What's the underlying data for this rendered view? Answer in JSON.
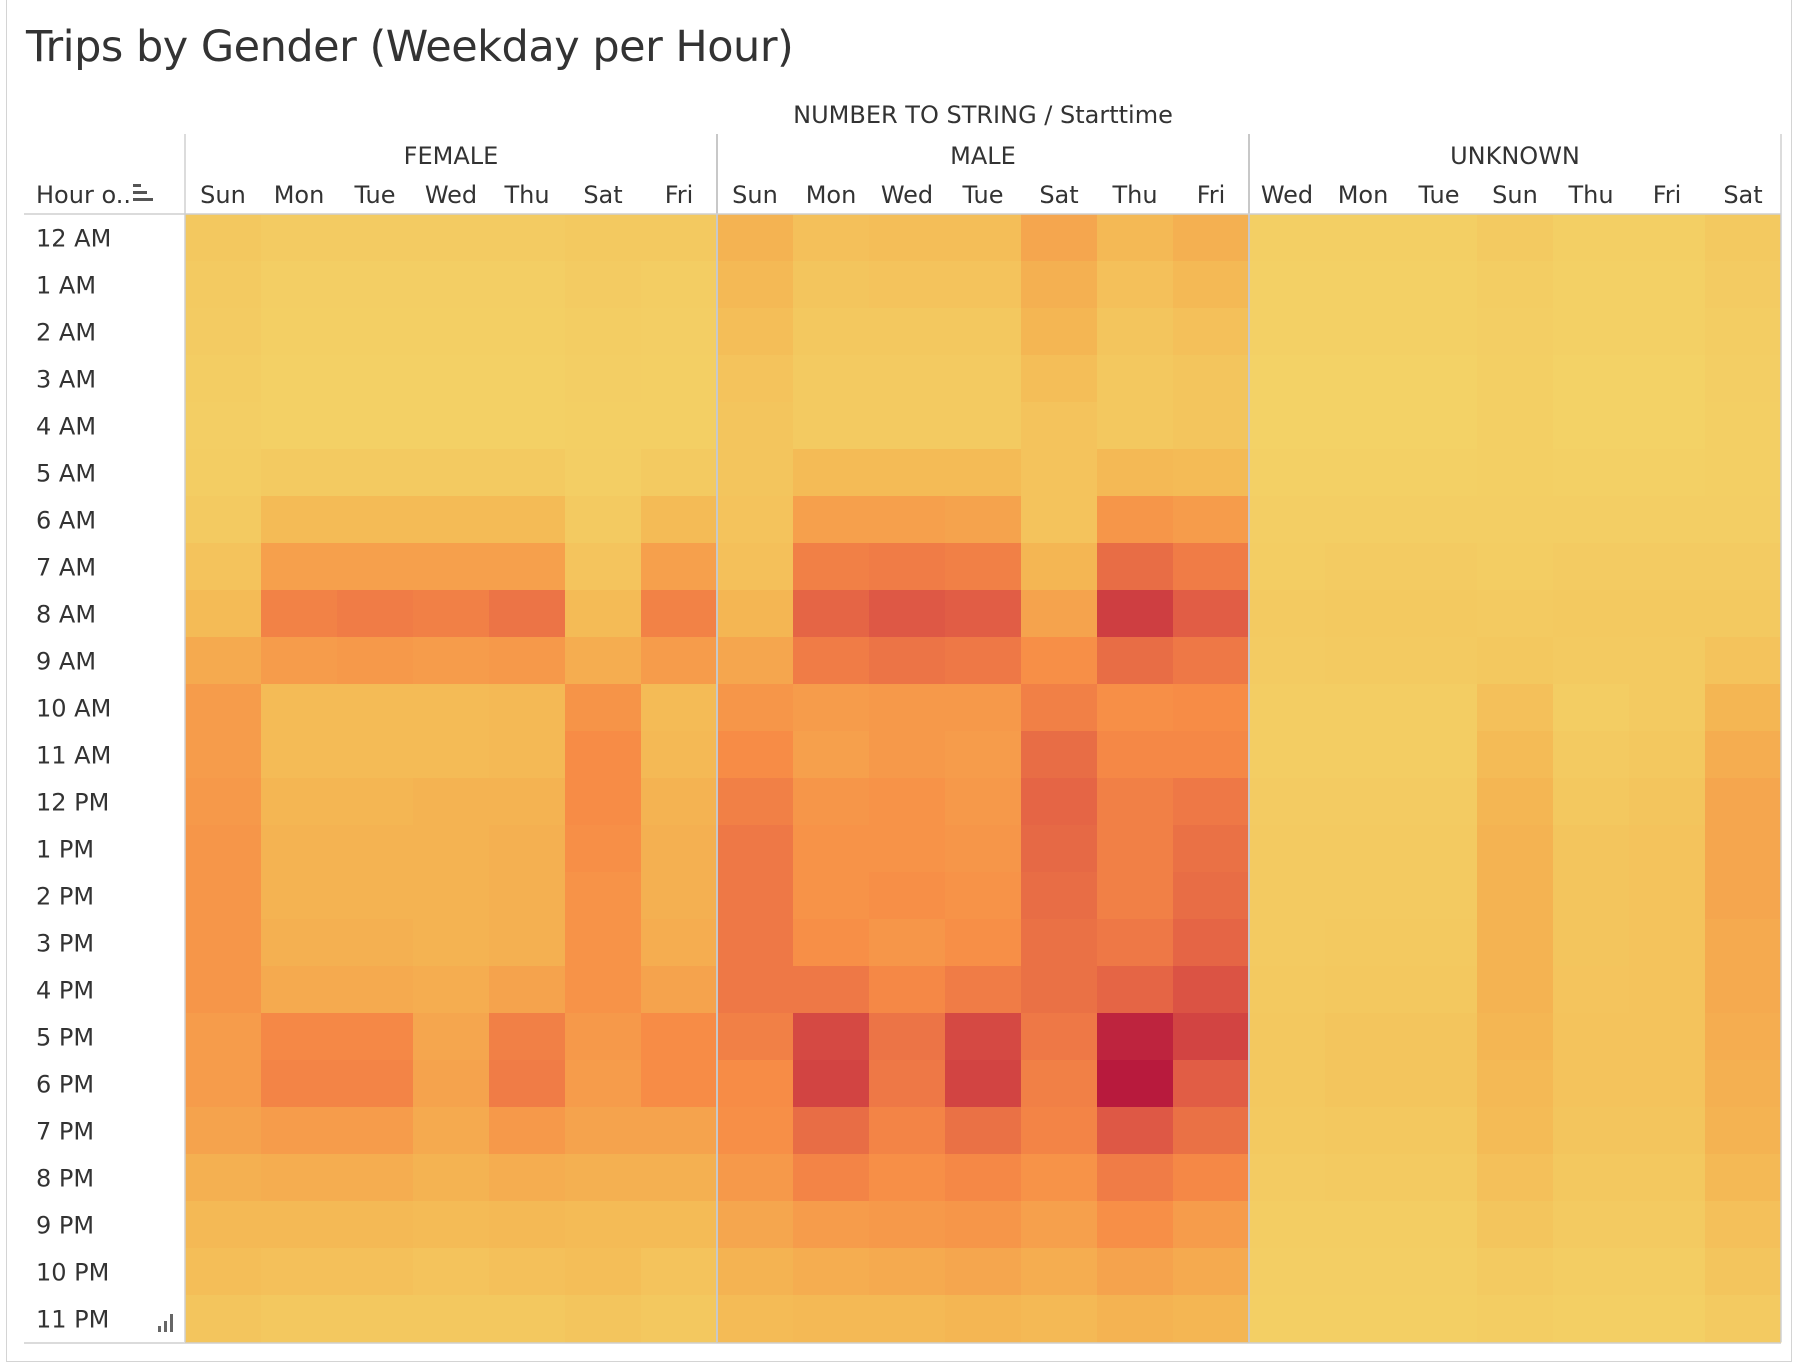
{
  "chart_data": {
    "type": "heatmap",
    "title": "Trips by Gender (Weekday per Hour)",
    "column_field_header": "NUMBER TO STRING / Starttime",
    "row_field_header": "Hour o..",
    "rows": [
      "12 AM",
      "1 AM",
      "2 AM",
      "3 AM",
      "4 AM",
      "5 AM",
      "6 AM",
      "7 AM",
      "8 AM",
      "9 AM",
      "10 AM",
      "11 AM",
      "12 PM",
      "1 PM",
      "2 PM",
      "3 PM",
      "4 PM",
      "5 PM",
      "6 PM",
      "7 PM",
      "8 PM",
      "9 PM",
      "10 PM",
      "11 PM"
    ],
    "color_scale": {
      "min": 0,
      "max": 100,
      "colors": [
        "#f3d468",
        "#f4b552",
        "#f78c46",
        "#e05b45",
        "#b81a3d"
      ]
    },
    "groups": [
      {
        "name": "FEMALE",
        "columns": [
          "Sun",
          "Mon",
          "Tue",
          "Wed",
          "Thu",
          "Sat",
          "Fri"
        ],
        "values": [
          [
            10,
            7,
            7,
            7,
            7,
            9,
            9
          ],
          [
            8,
            5,
            5,
            5,
            5,
            7,
            6
          ],
          [
            7,
            4,
            4,
            4,
            4,
            6,
            5
          ],
          [
            6,
            3,
            3,
            3,
            3,
            5,
            4
          ],
          [
            5,
            3,
            3,
            3,
            3,
            4,
            4
          ],
          [
            6,
            8,
            8,
            8,
            8,
            5,
            8
          ],
          [
            8,
            20,
            20,
            20,
            20,
            8,
            20
          ],
          [
            14,
            38,
            38,
            38,
            38,
            13,
            38
          ],
          [
            20,
            55,
            58,
            56,
            62,
            20,
            55
          ],
          [
            32,
            40,
            42,
            40,
            42,
            30,
            40
          ],
          [
            40,
            20,
            20,
            20,
            22,
            45,
            20
          ],
          [
            40,
            20,
            20,
            20,
            22,
            50,
            22
          ],
          [
            42,
            24,
            24,
            26,
            26,
            50,
            26
          ],
          [
            44,
            26,
            26,
            26,
            28,
            48,
            28
          ],
          [
            44,
            26,
            26,
            26,
            28,
            46,
            28
          ],
          [
            44,
            28,
            28,
            26,
            28,
            46,
            30
          ],
          [
            44,
            32,
            32,
            30,
            36,
            46,
            36
          ],
          [
            40,
            52,
            52,
            34,
            56,
            42,
            50
          ],
          [
            40,
            54,
            54,
            36,
            58,
            40,
            50
          ],
          [
            36,
            40,
            40,
            32,
            42,
            36,
            36
          ],
          [
            28,
            30,
            30,
            26,
            30,
            28,
            28
          ],
          [
            22,
            22,
            22,
            20,
            22,
            20,
            20
          ],
          [
            18,
            16,
            16,
            14,
            16,
            18,
            14
          ],
          [
            12,
            10,
            10,
            10,
            10,
            12,
            10
          ]
        ]
      },
      {
        "name": "MALE",
        "columns": [
          "Sun",
          "Mon",
          "Wed",
          "Tue",
          "Sat",
          "Thu",
          "Fri"
        ],
        "values": [
          [
            26,
            16,
            18,
            18,
            34,
            22,
            28
          ],
          [
            22,
            12,
            14,
            14,
            28,
            16,
            22
          ],
          [
            18,
            10,
            10,
            10,
            24,
            12,
            16
          ],
          [
            14,
            8,
            8,
            8,
            18,
            10,
            12
          ],
          [
            12,
            8,
            8,
            8,
            14,
            10,
            12
          ],
          [
            12,
            20,
            20,
            20,
            14,
            22,
            20
          ],
          [
            14,
            38,
            38,
            36,
            14,
            44,
            40
          ],
          [
            16,
            56,
            58,
            56,
            24,
            66,
            58
          ],
          [
            24,
            70,
            76,
            74,
            36,
            86,
            74
          ],
          [
            34,
            58,
            62,
            60,
            48,
            66,
            60
          ],
          [
            44,
            40,
            42,
            42,
            56,
            48,
            50
          ],
          [
            50,
            38,
            42,
            40,
            66,
            52,
            52
          ],
          [
            56,
            44,
            46,
            42,
            70,
            56,
            60
          ],
          [
            60,
            46,
            46,
            44,
            68,
            56,
            64
          ],
          [
            60,
            46,
            48,
            46,
            66,
            56,
            66
          ],
          [
            60,
            48,
            44,
            48,
            64,
            60,
            70
          ],
          [
            60,
            60,
            52,
            58,
            64,
            70,
            78
          ],
          [
            56,
            82,
            62,
            82,
            60,
            96,
            84
          ],
          [
            50,
            84,
            60,
            84,
            56,
            100,
            74
          ],
          [
            48,
            66,
            54,
            64,
            54,
            76,
            64
          ],
          [
            42,
            54,
            48,
            52,
            46,
            58,
            52
          ],
          [
            34,
            40,
            42,
            44,
            38,
            48,
            40
          ],
          [
            26,
            30,
            32,
            34,
            30,
            36,
            32
          ],
          [
            20,
            22,
            22,
            24,
            22,
            26,
            24
          ]
        ]
      },
      {
        "name": "UNKNOWN",
        "columns": [
          "Wed",
          "Mon",
          "Tue",
          "Sun",
          "Thu",
          "Fri",
          "Sat"
        ],
        "values": [
          [
            4,
            4,
            4,
            8,
            4,
            4,
            9
          ],
          [
            3,
            3,
            3,
            6,
            3,
            3,
            7
          ],
          [
            3,
            3,
            3,
            5,
            3,
            3,
            6
          ],
          [
            2,
            2,
            2,
            4,
            2,
            2,
            5
          ],
          [
            2,
            2,
            2,
            4,
            2,
            2,
            4
          ],
          [
            3,
            3,
            3,
            4,
            3,
            3,
            4
          ],
          [
            5,
            5,
            5,
            5,
            5,
            5,
            5
          ],
          [
            6,
            7,
            7,
            6,
            7,
            7,
            7
          ],
          [
            8,
            9,
            9,
            8,
            9,
            9,
            9
          ],
          [
            7,
            8,
            8,
            10,
            8,
            8,
            14
          ],
          [
            6,
            6,
            6,
            16,
            6,
            8,
            24
          ],
          [
            6,
            6,
            6,
            20,
            8,
            10,
            30
          ],
          [
            7,
            7,
            7,
            24,
            10,
            12,
            34
          ],
          [
            8,
            8,
            8,
            26,
            12,
            14,
            34
          ],
          [
            8,
            8,
            8,
            26,
            12,
            14,
            34
          ],
          [
            8,
            9,
            9,
            26,
            12,
            14,
            32
          ],
          [
            9,
            10,
            10,
            26,
            13,
            14,
            32
          ],
          [
            10,
            12,
            12,
            24,
            14,
            14,
            30
          ],
          [
            10,
            12,
            12,
            22,
            14,
            14,
            28
          ],
          [
            9,
            10,
            10,
            20,
            12,
            12,
            26
          ],
          [
            7,
            8,
            8,
            16,
            10,
            10,
            22
          ],
          [
            6,
            6,
            6,
            12,
            8,
            8,
            16
          ],
          [
            5,
            5,
            5,
            8,
            6,
            6,
            12
          ],
          [
            4,
            4,
            4,
            6,
            4,
            4,
            8
          ]
        ]
      }
    ]
  }
}
